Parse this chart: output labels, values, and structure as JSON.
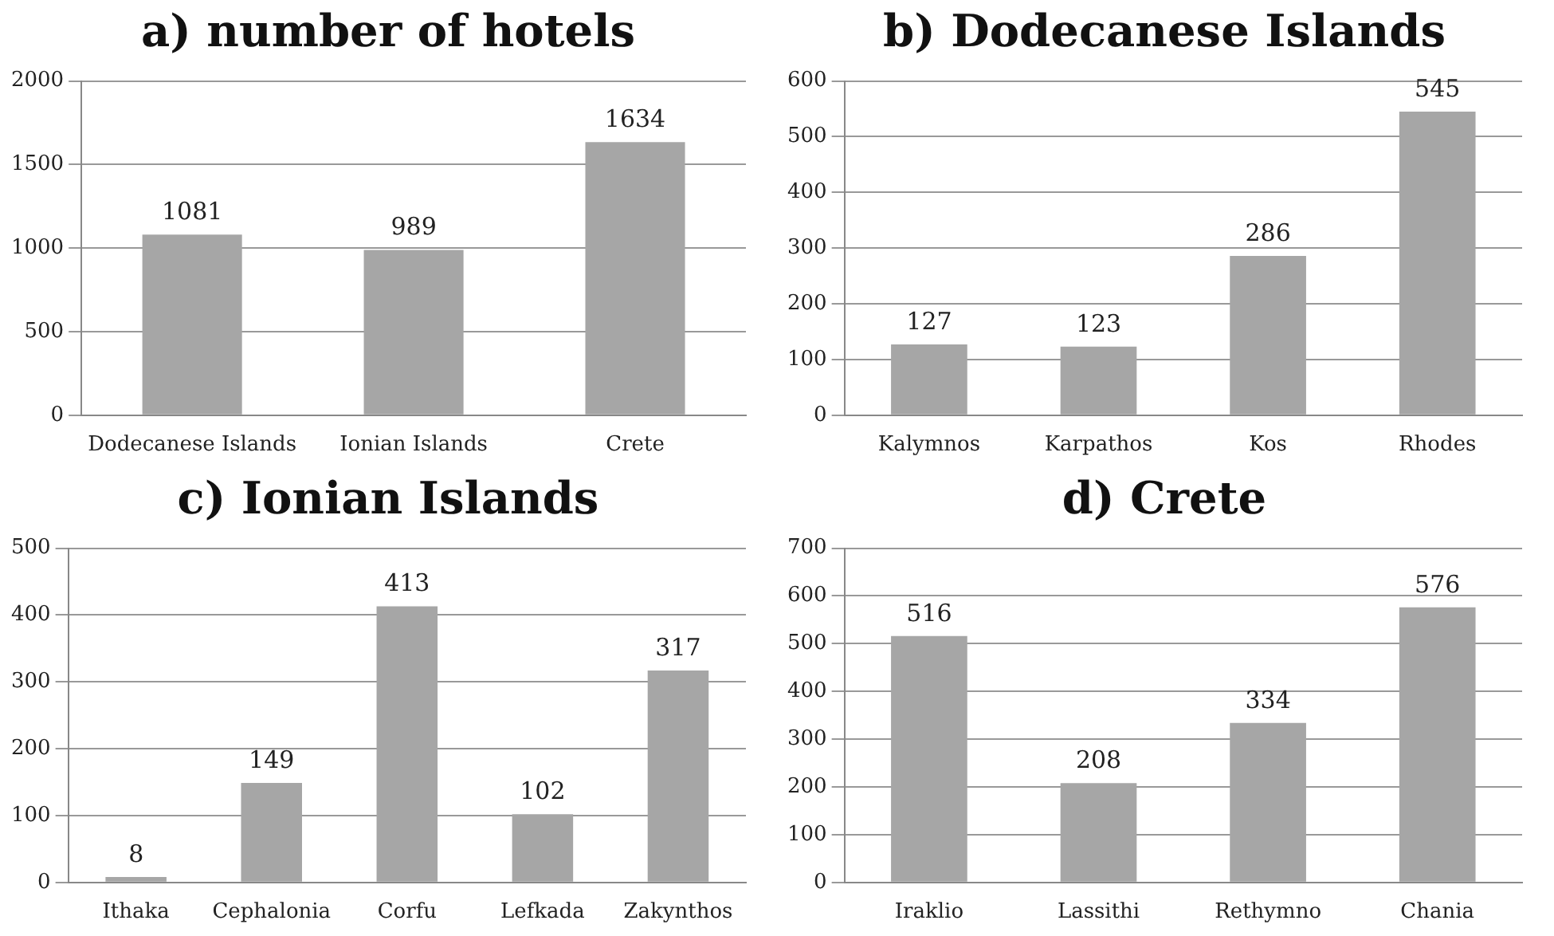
{
  "chart_data": [
    {
      "type": "bar",
      "title": "a) number of hotels",
      "categories": [
        "Dodecanese Islands",
        "Ionian Islands",
        "Crete"
      ],
      "values": [
        1081,
        989,
        1634
      ],
      "color": "#a6a6a6",
      "ylim": [
        0,
        2000
      ],
      "yticks": [
        0,
        500,
        1000,
        1500,
        2000
      ],
      "grid": "y",
      "data_labels": true
    },
    {
      "type": "bar",
      "title": "b) Dodecanese Islands",
      "categories": [
        "Kalymnos",
        "Karpathos",
        "Kos",
        "Rhodes"
      ],
      "values": [
        127,
        123,
        286,
        545
      ],
      "color": "#a6a6a6",
      "ylim": [
        0,
        600
      ],
      "yticks": [
        0,
        100,
        200,
        300,
        400,
        500,
        600
      ],
      "grid": "y",
      "data_labels": true
    },
    {
      "type": "bar",
      "title": "c) Ionian Islands",
      "categories": [
        "Ithaka",
        "Cephalonia",
        "Corfu",
        "Lefkada",
        "Zakynthos"
      ],
      "values": [
        8,
        149,
        413,
        102,
        317
      ],
      "color": "#a6a6a6",
      "ylim": [
        0,
        500
      ],
      "yticks": [
        0,
        100,
        200,
        300,
        400,
        500
      ],
      "grid": "y",
      "data_labels": true
    },
    {
      "type": "bar",
      "title": "d) Crete",
      "categories": [
        "Iraklio",
        "Lassithi",
        "Rethymno",
        "Chania"
      ],
      "values": [
        516,
        208,
        334,
        576
      ],
      "color": "#a6a6a6",
      "ylim": [
        0,
        700
      ],
      "yticks": [
        0,
        100,
        200,
        300,
        400,
        500,
        600,
        700
      ],
      "grid": "y",
      "data_labels": true
    }
  ]
}
